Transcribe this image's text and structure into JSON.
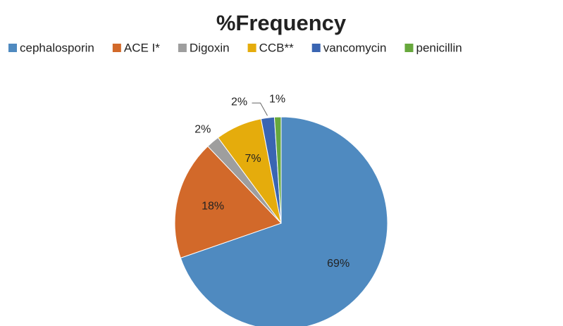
{
  "chart_data": {
    "type": "pie",
    "title": "%Frequency",
    "categories": [
      "cephalosporin",
      "ACE I*",
      "Digoxin",
      "CCB**",
      "vancomycin",
      "penicillin"
    ],
    "values": [
      69,
      18,
      2,
      7,
      2,
      1
    ],
    "value_labels": [
      "69%",
      "18%",
      "2%",
      "7%",
      "2%",
      "1%"
    ],
    "colors": [
      "#4f8ac0",
      "#d2692a",
      "#9e9e9e",
      "#e5ac0c",
      "#3a65b2",
      "#67a83c"
    ],
    "legend": "top"
  }
}
